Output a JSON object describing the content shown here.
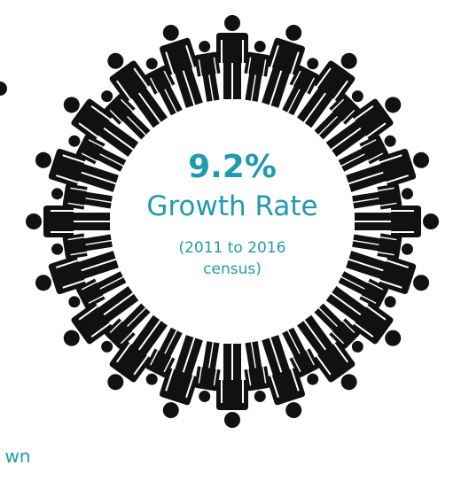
{
  "headline": {
    "value": "9.2%",
    "label": "Growth Rate",
    "note_line1": "(2011 to 2016",
    "note_line2": "census)"
  },
  "fragment": "wn"
}
